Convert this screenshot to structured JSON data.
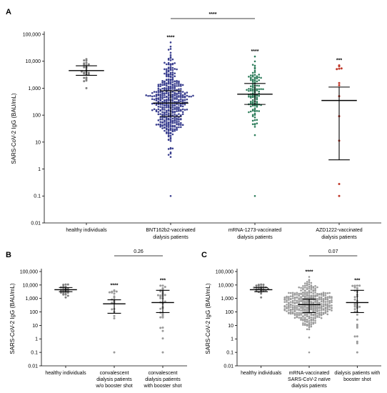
{
  "chart_data": [
    {
      "panel": "A",
      "type": "scatter",
      "ylabel": "SARS-CoV-2 IgG (BAU/mL)",
      "yscale": "log",
      "ylim": [
        0.01,
        100000
      ],
      "yticks": [
        "0.01",
        "0.1",
        "1",
        "10",
        "100",
        "1,000",
        "10,000",
        "100,000"
      ],
      "categories": [
        [
          "healthy individuals"
        ],
        [
          "BNT162b2-vaccinated",
          "dialysis patients"
        ],
        [
          "mRNA-1273-vaccinated",
          "dialysis patients"
        ],
        [
          "AZD1222-vaccinated",
          "dialysis patients"
        ]
      ],
      "groups": [
        {
          "color": "#7f7f7f",
          "n": 25,
          "median": 4500,
          "q1": 3000,
          "q3": 6800,
          "min": 1000,
          "max": 12000,
          "sig": ""
        },
        {
          "color": "#3a3f8f",
          "n": 460,
          "median": 280,
          "q1": 90,
          "q3": 800,
          "min": 0.1,
          "max": 50000,
          "sig": "****"
        },
        {
          "color": "#2e7d5b",
          "n": 120,
          "median": 600,
          "q1": 250,
          "q3": 1500,
          "min": 0.1,
          "max": 15000,
          "sig": "****"
        },
        {
          "color": "#c0392b",
          "n": 12,
          "median": 350,
          "q1": 2.2,
          "q3": 1100,
          "min": 0.1,
          "max": 7000,
          "sig": "***"
        }
      ],
      "comparison": {
        "from": 1,
        "to": 2,
        "label": "****"
      }
    },
    {
      "panel": "B",
      "type": "scatter",
      "ylabel": "SARS-CoV-2 IgG (BAU/mL)",
      "yscale": "log",
      "ylim": [
        0.01,
        100000
      ],
      "yticks": [
        "0.01",
        "0.1",
        "1",
        "10",
        "100",
        "1,000",
        "10,000",
        "100,000"
      ],
      "categories": [
        [
          "healthy individuals"
        ],
        [
          "convalescent",
          "dialysis patients",
          "w/o booster shot"
        ],
        [
          "convalescent",
          "dialysis patients",
          "with booster shot"
        ]
      ],
      "groups": [
        {
          "color": "#7f7f7f",
          "n": 25,
          "median": 4500,
          "q1": 3200,
          "q3": 6500,
          "min": 1200,
          "max": 11000,
          "sig": ""
        },
        {
          "color": "#9a9a9a",
          "n": 20,
          "median": 400,
          "q1": 80,
          "q3": 800,
          "min": 0.1,
          "max": 4000,
          "sig": "****"
        },
        {
          "color": "#9a9a9a",
          "n": 35,
          "median": 500,
          "q1": 90,
          "q3": 4000,
          "min": 0.1,
          "max": 9000,
          "sig": "***"
        }
      ],
      "comparison": {
        "from": 1,
        "to": 2,
        "label": "0.26"
      }
    },
    {
      "panel": "C",
      "type": "scatter",
      "ylabel": "SARS-CoV-2 IgG (BAU/mL)",
      "yscale": "log",
      "ylim": [
        0.01,
        100000
      ],
      "yticks": [
        "0.01",
        "0.1",
        "1",
        "10",
        "100",
        "1,000",
        "10,000",
        "100,000"
      ],
      "categories": [
        [
          "healthy individuals"
        ],
        [
          "mRNA-vaccinated",
          "SARS-CoV-2 naïve",
          "dialysis patients"
        ],
        [
          "dialysis patients with",
          "booster shot"
        ]
      ],
      "groups": [
        {
          "color": "#7f7f7f",
          "n": 25,
          "median": 4500,
          "q1": 3200,
          "q3": 6500,
          "min": 1200,
          "max": 11000,
          "sig": ""
        },
        {
          "color": "#9a9a9a",
          "n": 450,
          "median": 350,
          "q1": 90,
          "q3": 900,
          "min": 0.1,
          "max": 40000,
          "sig": "****"
        },
        {
          "color": "#9a9a9a",
          "n": 35,
          "median": 500,
          "q1": 90,
          "q3": 4000,
          "min": 0.1,
          "max": 9000,
          "sig": "***"
        }
      ],
      "comparison": {
        "from": 1,
        "to": 2,
        "label": "0.07"
      }
    }
  ]
}
